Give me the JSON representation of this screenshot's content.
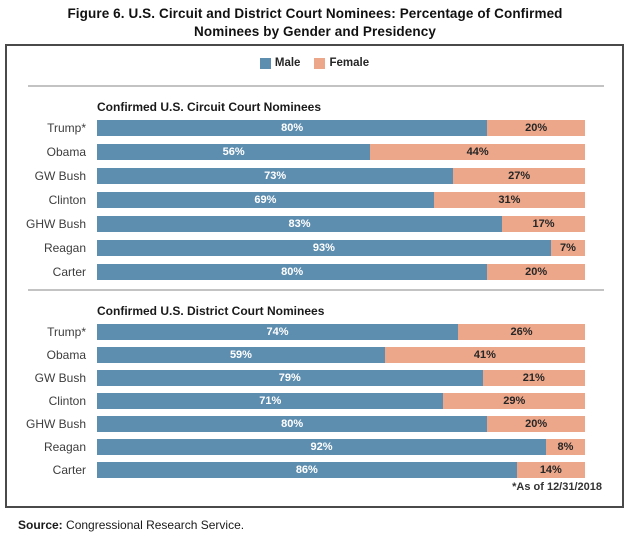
{
  "title": {
    "line1": "Figure 6. U.S. Circuit and District Court Nominees: Percentage of Confirmed",
    "line2": "Nominees by Gender and Presidency"
  },
  "legend": {
    "male_label": "Male",
    "female_label": "Female"
  },
  "colors": {
    "male": "#5E8EAF",
    "female": "#ECA78A",
    "border": "#4a4a4a",
    "divider": "#c3c3c3"
  },
  "chart_data": {
    "type": "bar",
    "subtype": "stacked-horizontal",
    "unit": "%",
    "xlim": [
      0,
      100
    ],
    "series_names": [
      "Male",
      "Female"
    ],
    "legend_position": "top-center",
    "panels": [
      {
        "title": "Confirmed U.S. Circuit Court Nominees",
        "categories": [
          "Trump*",
          "Obama",
          "GW Bush",
          "Clinton",
          "GHW Bush",
          "Reagan",
          "Carter"
        ],
        "series": [
          {
            "name": "Male",
            "values": [
              80,
              56,
              73,
              69,
              83,
              93,
              80
            ]
          },
          {
            "name": "Female",
            "values": [
              20,
              44,
              27,
              31,
              17,
              7,
              20
            ]
          }
        ]
      },
      {
        "title": "Confirmed U.S. District Court Nominees",
        "categories": [
          "Trump*",
          "Obama",
          "GW Bush",
          "Clinton",
          "GHW Bush",
          "Reagan",
          "Carter"
        ],
        "series": [
          {
            "name": "Male",
            "values": [
              74,
              59,
              79,
              71,
              80,
              92,
              86
            ]
          },
          {
            "name": "Female",
            "values": [
              26,
              41,
              21,
              29,
              20,
              8,
              14
            ]
          }
        ]
      }
    ],
    "footnote": "*As of 12/31/2018"
  },
  "source": {
    "label": "Source:",
    "text": " Congressional Research Service."
  }
}
